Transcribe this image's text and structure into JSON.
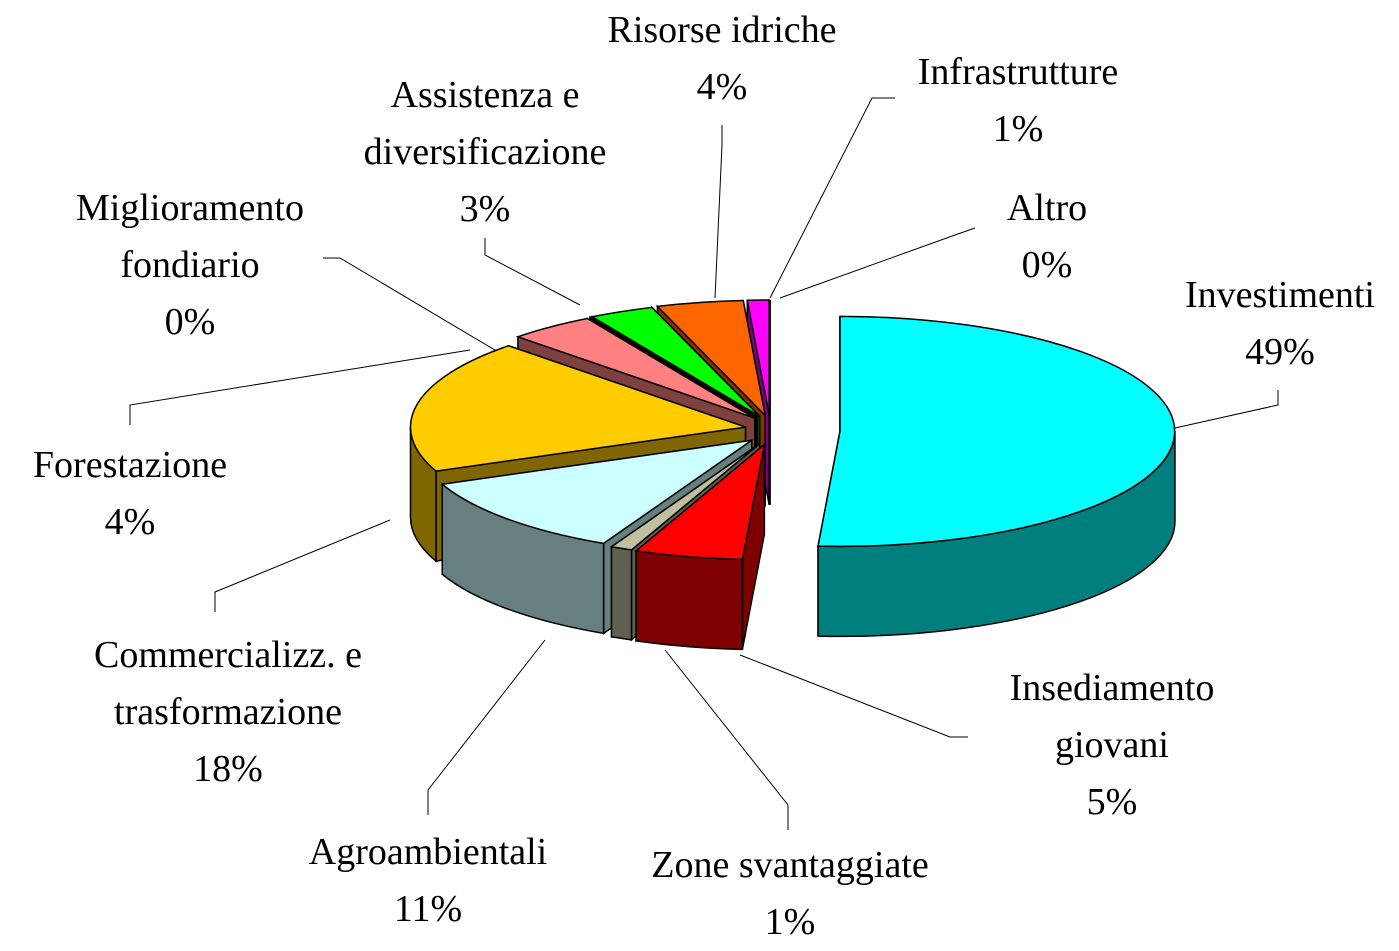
{
  "chart_data": {
    "type": "pie",
    "categories": [
      "Investimenti",
      "Insediamento giovani",
      "Zone svantaggiate",
      "Agroambientali",
      "Commercializz. e trasformazione",
      "Forestazione",
      "Miglioramento fondiario",
      "Assistenza e diversificazione",
      "Risorse idriche",
      "Infrastrutture",
      "Altro"
    ],
    "values": [
      49,
      5,
      1,
      11,
      18,
      4,
      0,
      3,
      4,
      1,
      0
    ],
    "value_labels": [
      "49%",
      "5%",
      "1%",
      "11%",
      "18%",
      "4%",
      "0%",
      "3%",
      "4%",
      "1%",
      "0%"
    ],
    "colors": [
      "#00ffff",
      "#ff0000",
      "#c0c0a0",
      "#ccffff",
      "#ffcc00",
      "#ff8080",
      "#000000",
      "#00ff00",
      "#ff6600",
      "#ff00ff",
      "#ffff99"
    ]
  }
}
